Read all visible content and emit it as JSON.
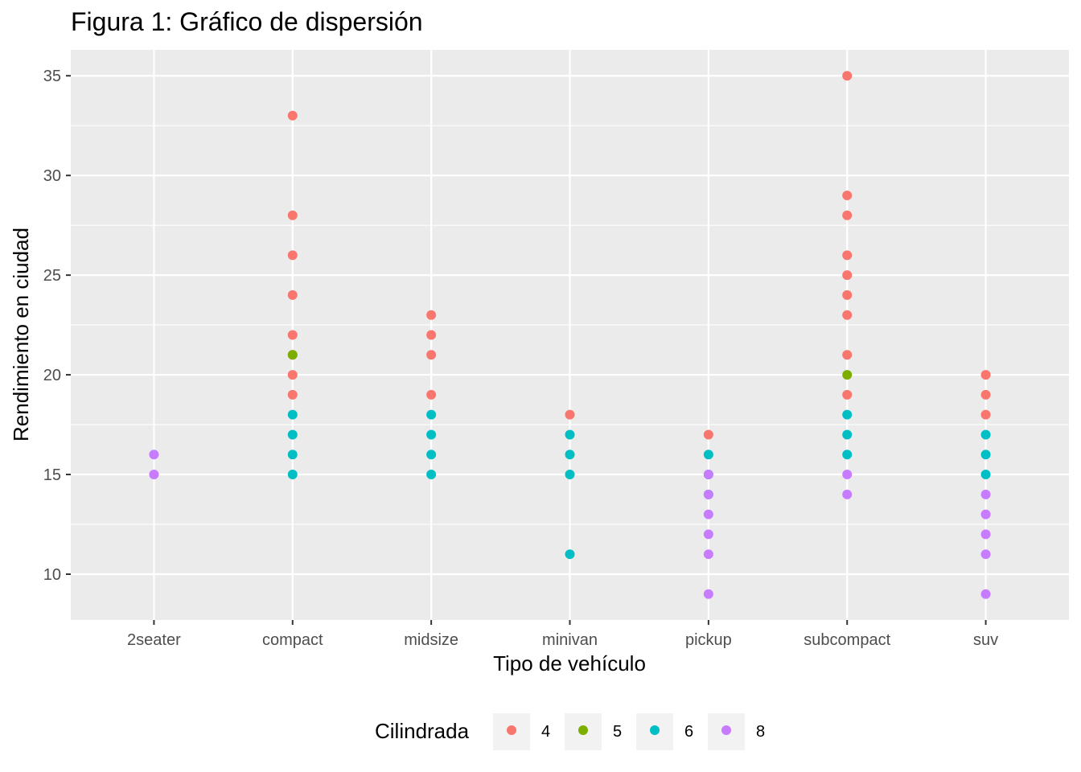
{
  "chart_data": {
    "type": "scatter",
    "title": "Figura 1: Gráfico de dispersión",
    "xlabel": "Tipo de vehículo",
    "ylabel": "Rendimiento en ciudad",
    "categories": [
      "2seater",
      "compact",
      "midsize",
      "minivan",
      "pickup",
      "subcompact",
      "suv"
    ],
    "ylim": [
      7.7,
      36.3
    ],
    "yticks": [
      10,
      15,
      20,
      25,
      30,
      35
    ],
    "grid": true,
    "legend": {
      "title": "Cilindrada",
      "position": "bottom",
      "entries": [
        {
          "label": "4",
          "color": "#F8766D"
        },
        {
          "label": "5",
          "color": "#7CAE00"
        },
        {
          "label": "6",
          "color": "#00BFC4"
        },
        {
          "label": "8",
          "color": "#C77CFF"
        }
      ]
    },
    "series": [
      {
        "name": "4",
        "color": "#F8766D",
        "points": [
          [
            "compact",
            33
          ],
          [
            "compact",
            28
          ],
          [
            "compact",
            26
          ],
          [
            "compact",
            24
          ],
          [
            "compact",
            22
          ],
          [
            "compact",
            21
          ],
          [
            "compact",
            20
          ],
          [
            "compact",
            19
          ],
          [
            "midsize",
            23
          ],
          [
            "midsize",
            22
          ],
          [
            "midsize",
            21
          ],
          [
            "midsize",
            19
          ],
          [
            "minivan",
            18
          ],
          [
            "pickup",
            17
          ],
          [
            "subcompact",
            35
          ],
          [
            "subcompact",
            29
          ],
          [
            "subcompact",
            28
          ],
          [
            "subcompact",
            26
          ],
          [
            "subcompact",
            25
          ],
          [
            "subcompact",
            24
          ],
          [
            "subcompact",
            23
          ],
          [
            "subcompact",
            21
          ],
          [
            "subcompact",
            19
          ],
          [
            "suv",
            20
          ],
          [
            "suv",
            19
          ],
          [
            "suv",
            18
          ]
        ]
      },
      {
        "name": "5",
        "color": "#7CAE00",
        "points": [
          [
            "compact",
            21
          ],
          [
            "subcompact",
            20
          ]
        ]
      },
      {
        "name": "6",
        "color": "#00BFC4",
        "points": [
          [
            "compact",
            18
          ],
          [
            "compact",
            17
          ],
          [
            "compact",
            16
          ],
          [
            "compact",
            15
          ],
          [
            "midsize",
            18
          ],
          [
            "midsize",
            17
          ],
          [
            "midsize",
            16
          ],
          [
            "midsize",
            15
          ],
          [
            "minivan",
            17
          ],
          [
            "minivan",
            16
          ],
          [
            "minivan",
            15
          ],
          [
            "minivan",
            11
          ],
          [
            "pickup",
            16
          ],
          [
            "pickup",
            15
          ],
          [
            "pickup",
            14
          ],
          [
            "subcompact",
            18
          ],
          [
            "subcompact",
            17
          ],
          [
            "subcompact",
            16
          ],
          [
            "suv",
            17
          ],
          [
            "suv",
            16
          ],
          [
            "suv",
            15
          ]
        ]
      },
      {
        "name": "8",
        "color": "#C77CFF",
        "points": [
          [
            "2seater",
            16
          ],
          [
            "2seater",
            15
          ],
          [
            "pickup",
            15
          ],
          [
            "pickup",
            14
          ],
          [
            "pickup",
            13
          ],
          [
            "pickup",
            12
          ],
          [
            "pickup",
            11
          ],
          [
            "pickup",
            9
          ],
          [
            "subcompact",
            15
          ],
          [
            "subcompact",
            14
          ],
          [
            "suv",
            14
          ],
          [
            "suv",
            13
          ],
          [
            "suv",
            12
          ],
          [
            "suv",
            11
          ],
          [
            "suv",
            9
          ]
        ]
      }
    ]
  }
}
